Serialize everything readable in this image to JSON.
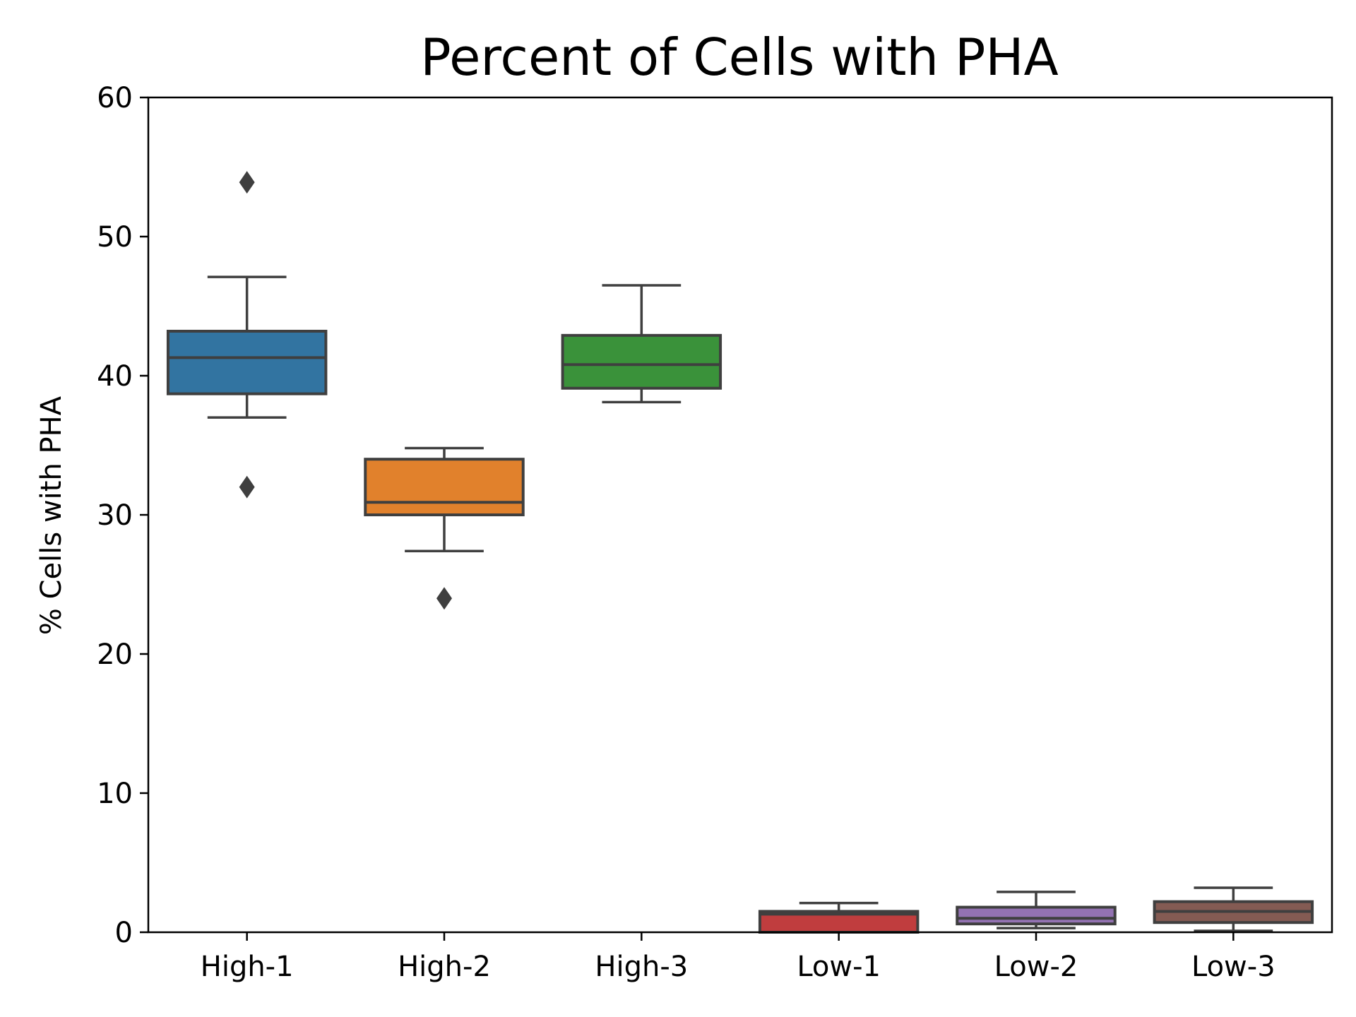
{
  "chart_data": {
    "type": "box",
    "title": "Percent of Cells with PHA",
    "xlabel": "",
    "ylabel": "% Cells with PHA",
    "ylim": [
      0,
      60
    ],
    "yticks": [
      "0",
      "10",
      "20",
      "30",
      "40",
      "50",
      "60"
    ],
    "grid": false,
    "categories": [
      "High-1",
      "High-2",
      "High-3",
      "Low-1",
      "Low-2",
      "Low-3"
    ],
    "boxes": [
      {
        "category": "High-1",
        "whisker_low": 37.0,
        "q1": 38.7,
        "median": 41.3,
        "q3": 43.2,
        "whisker_high": 47.1,
        "outliers": [
          53.9,
          32.0
        ],
        "color": "#3274a1"
      },
      {
        "category": "High-2",
        "whisker_low": 27.4,
        "q1": 30.0,
        "median": 30.9,
        "q3": 34.0,
        "whisker_high": 34.8,
        "outliers": [
          24.0
        ],
        "color": "#e1812c"
      },
      {
        "category": "High-3",
        "whisker_low": 38.1,
        "q1": 39.1,
        "median": 40.8,
        "q3": 42.9,
        "whisker_high": 46.5,
        "outliers": [],
        "color": "#3a923a"
      },
      {
        "category": "Low-1",
        "whisker_low": 0.0,
        "q1": 0.0,
        "median": 1.3,
        "q3": 1.5,
        "whisker_high": 2.1,
        "outliers": [],
        "color": "#c03d3e"
      },
      {
        "category": "Low-2",
        "whisker_low": 0.3,
        "q1": 0.6,
        "median": 1.0,
        "q3": 1.8,
        "whisker_high": 2.9,
        "outliers": [],
        "color": "#9372b2"
      },
      {
        "category": "Low-3",
        "whisker_low": 0.1,
        "q1": 0.7,
        "median": 1.5,
        "q3": 2.2,
        "whisker_high": 3.2,
        "outliers": [],
        "color": "#845b53"
      }
    ],
    "colors": {
      "edge": "#3f3f3f",
      "axis": "#000000"
    }
  }
}
